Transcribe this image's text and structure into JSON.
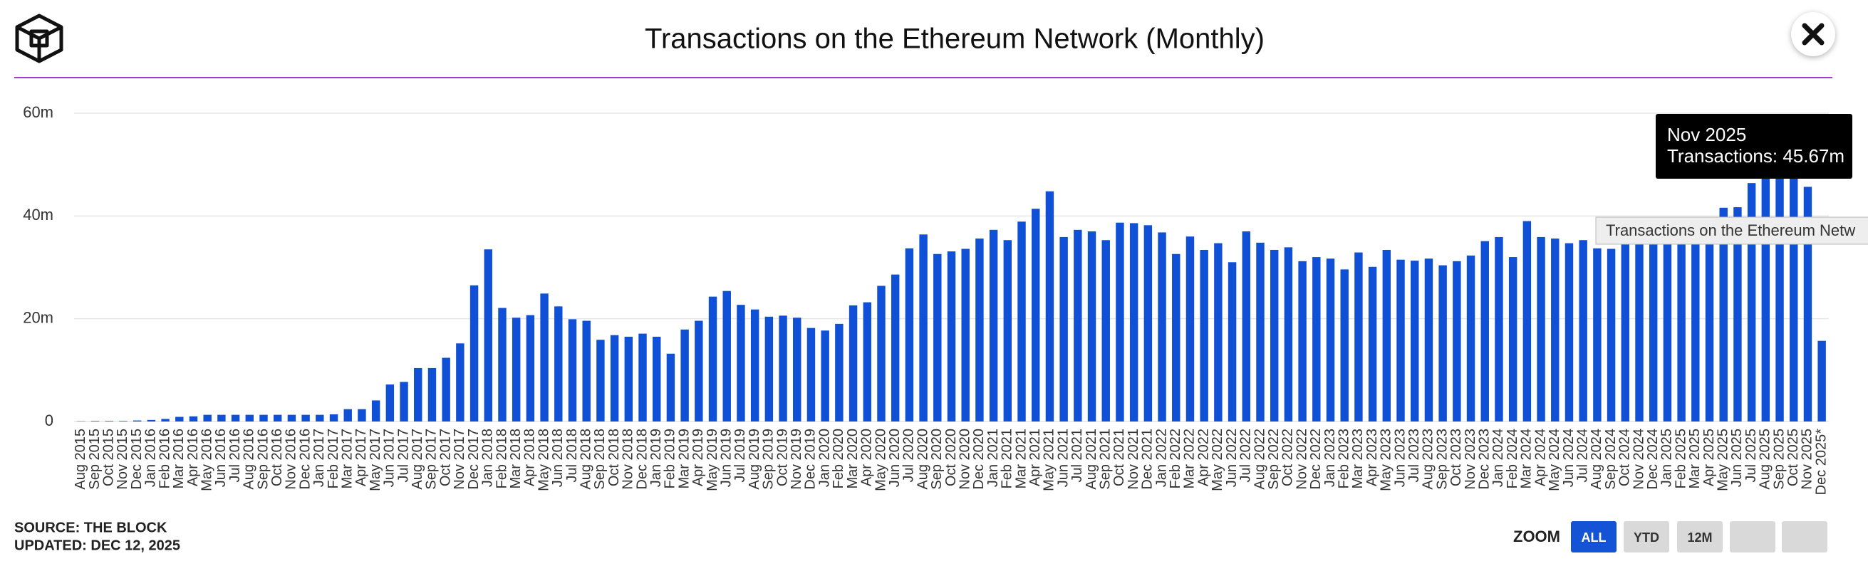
{
  "chart_data": {
    "type": "bar",
    "title": "Transactions on the Ethereum Network (Monthly)",
    "categories": [
      "Aug 2015",
      "Sep 2015",
      "Oct 2015",
      "Nov 2015",
      "Dec 2015",
      "Jan 2016",
      "Feb 2016",
      "Mar 2016",
      "Apr 2016",
      "May 2016",
      "Jun 2016",
      "Jul 2016",
      "Aug 2016",
      "Sep 2016",
      "Oct 2016",
      "Nov 2016",
      "Dec 2016",
      "Jan 2017",
      "Feb 2017",
      "Mar 2017",
      "Apr 2017",
      "May 2017",
      "Jun 2017",
      "Jul 2017",
      "Aug 2017",
      "Sep 2017",
      "Oct 2017",
      "Nov 2017",
      "Dec 2017",
      "Jan 2018",
      "Feb 2018",
      "Mar 2018",
      "Apr 2018",
      "May 2018",
      "Jun 2018",
      "Jul 2018",
      "Aug 2018",
      "Sep 2018",
      "Oct 2018",
      "Nov 2018",
      "Dec 2018",
      "Jan 2019",
      "Feb 2019",
      "Mar 2019",
      "Apr 2019",
      "May 2019",
      "Jun 2019",
      "Jul 2019",
      "Aug 2019",
      "Sep 2019",
      "Oct 2019",
      "Nov 2019",
      "Dec 2019",
      "Jan 2020",
      "Feb 2020",
      "Mar 2020",
      "Apr 2020",
      "May 2020",
      "Jun 2020",
      "Jul 2020",
      "Aug 2020",
      "Sep 2020",
      "Oct 2020",
      "Nov 2020",
      "Dec 2020",
      "Jan 2021",
      "Feb 2021",
      "Mar 2021",
      "Apr 2021",
      "May 2021",
      "Jun 2021",
      "Jul 2021",
      "Aug 2021",
      "Sep 2021",
      "Oct 2021",
      "Nov 2021",
      "Dec 2021",
      "Jan 2022",
      "Feb 2022",
      "Mar 2022",
      "Apr 2022",
      "May 2022",
      "Jun 2022",
      "Jul 2022",
      "Aug 2022",
      "Sep 2022",
      "Oct 2022",
      "Nov 2022",
      "Dec 2022",
      "Jan 2023",
      "Feb 2023",
      "Mar 2023",
      "Apr 2023",
      "May 2023",
      "Jun 2023",
      "Jul 2023",
      "Aug 2023",
      "Sep 2023",
      "Oct 2023",
      "Nov 2023",
      "Dec 2023",
      "Jan 2024",
      "Feb 2024",
      "Mar 2024",
      "Apr 2024",
      "May 2024",
      "Jun 2024",
      "Jul 2024",
      "Aug 2024",
      "Sep 2024",
      "Oct 2024",
      "Nov 2024",
      "Dec 2024",
      "Jan 2025",
      "Feb 2025",
      "Mar 2025",
      "Apr 2025",
      "May 2025",
      "Jun 2025",
      "Jul 2025",
      "Aug 2025",
      "Sep 2025",
      "Oct 2025",
      "Nov 2025",
      "Dec 2025*"
    ],
    "values": [
      0.05,
      0.1,
      0.1,
      0.1,
      0.2,
      0.3,
      0.5,
      0.9,
      1.0,
      1.3,
      1.3,
      1.3,
      1.3,
      1.3,
      1.3,
      1.3,
      1.3,
      1.3,
      1.4,
      2.4,
      2.4,
      4.1,
      7.2,
      7.7,
      10.4,
      10.4,
      12.4,
      15.2,
      26.5,
      33.5,
      22.1,
      20.2,
      20.7,
      24.9,
      22.4,
      19.9,
      19.6,
      15.9,
      16.8,
      16.5,
      17.1,
      16.5,
      13.2,
      17.9,
      19.6,
      24.3,
      25.4,
      22.7,
      21.8,
      20.4,
      20.6,
      20.2,
      18.2,
      17.7,
      19.0,
      22.6,
      23.2,
      26.4,
      28.6,
      33.7,
      36.4,
      32.6,
      33.1,
      33.6,
      35.6,
      37.3,
      35.3,
      38.9,
      41.4,
      44.8,
      35.9,
      37.3,
      37.0,
      35.3,
      38.7,
      38.6,
      38.2,
      36.8,
      32.6,
      36.0,
      33.4,
      34.7,
      31.0,
      37.0,
      34.8,
      33.4,
      33.9,
      31.2,
      32.0,
      31.7,
      29.6,
      32.9,
      30.1,
      33.4,
      31.5,
      31.3,
      31.7,
      30.4,
      31.2,
      32.3,
      35.1,
      35.9,
      32.0,
      39.0,
      35.9,
      35.6,
      34.7,
      35.3,
      33.7,
      33.6,
      35.0,
      35.5,
      37.0,
      36.0,
      35.0,
      36.0,
      37.0,
      41.6,
      41.7,
      46.4,
      50.0,
      49.0,
      50.0,
      45.67,
      15.7
    ],
    "color": "#0f50d6",
    "ylim": [
      0,
      60
    ],
    "yticks": [
      0,
      {
        "value": 20,
        "label": "20m"
      },
      {
        "value": 40,
        "label": "40m"
      },
      {
        "value": 60,
        "label": "60m"
      }
    ],
    "grid": true,
    "tooltip": {
      "title": "Nov 2025",
      "label": "Transactions: 45.67m"
    },
    "hover_title": "Transactions on the Ethereum Netw"
  },
  "footer": {
    "source": "SOURCE: THE BLOCK",
    "updated": "UPDATED: DEC 12, 2025"
  },
  "zoom": {
    "label": "ZOOM",
    "buttons": [
      "ALL",
      "YTD",
      "12M"
    ]
  }
}
